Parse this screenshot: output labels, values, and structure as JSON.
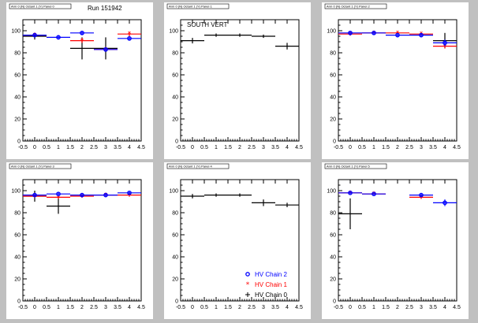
{
  "run_label": "Run 151942",
  "colors": {
    "chain2": "#0000ff",
    "chain1": "#ff0000",
    "chain0": "#000000"
  },
  "legend": {
    "chain2": "HV Chain 2",
    "chain1": "HV Chain 1",
    "chain0": "HV Chain 0"
  },
  "chart_data": [
    {
      "type": "scatter",
      "title": "Arm 0 (N) Octant 1 (Y) Panel 0",
      "annotation": "",
      "xlim": [
        -0.5,
        4.5
      ],
      "ylim": [
        0,
        110
      ],
      "xticks": [
        "-0.5",
        "0",
        "0.5",
        "1",
        "1.5",
        "2",
        "2.5",
        "3",
        "3.5",
        "4",
        "4.5"
      ],
      "yticks": [
        "0",
        "20",
        "40",
        "60",
        "80",
        "100"
      ],
      "series": [
        {
          "key": "chain0",
          "points": [
            {
              "x": 0,
              "y": 95,
              "xe": 0.5,
              "ye": 3
            },
            {
              "x": 2,
              "y": 84,
              "xe": 0.5,
              "ye": 10
            },
            {
              "x": 3,
              "y": 84,
              "xe": 0.5,
              "ye": 10
            }
          ]
        },
        {
          "key": "chain1",
          "points": [
            {
              "x": 0,
              "y": 96,
              "xe": 0.5,
              "ye": 2
            },
            {
              "x": 2,
              "y": 91,
              "xe": 0.5,
              "ye": 2
            },
            {
              "x": 3,
              "y": 83,
              "xe": 0.5,
              "ye": 2
            },
            {
              "x": 4,
              "y": 97,
              "xe": 0.5,
              "ye": 2
            }
          ]
        },
        {
          "key": "chain2",
          "points": [
            {
              "x": 0,
              "y": 96,
              "xe": 0.5,
              "ye": 2
            },
            {
              "x": 1,
              "y": 94,
              "xe": 0.5,
              "ye": 2
            },
            {
              "x": 2,
              "y": 98,
              "xe": 0.5,
              "ye": 2
            },
            {
              "x": 3,
              "y": 83,
              "xe": 0.5,
              "ye": 2
            },
            {
              "x": 4,
              "y": 93,
              "xe": 0.5,
              "ye": 2
            }
          ]
        }
      ]
    },
    {
      "type": "scatter",
      "title": "Arm 0 (N) Octant 1 (Y) Panel 1",
      "annotation": "SOUTH VERT",
      "xlim": [
        -0.5,
        4.5
      ],
      "ylim": [
        0,
        110
      ],
      "xticks": [
        "-0.5",
        "0",
        "0.5",
        "1",
        "1.5",
        "2",
        "2.5",
        "3",
        "3.5",
        "4",
        "4.5"
      ],
      "yticks": [
        "0",
        "20",
        "40",
        "60",
        "80",
        "100"
      ],
      "series": [
        {
          "key": "chain0",
          "points": [
            {
              "x": 0,
              "y": 91,
              "xe": 0.5,
              "ye": 2.5
            },
            {
              "x": 1,
              "y": 96,
              "xe": 0.5,
              "ye": 1.5
            },
            {
              "x": 2,
              "y": 96,
              "xe": 0.5,
              "ye": 1.5
            },
            {
              "x": 3,
              "y": 95,
              "xe": 0.5,
              "ye": 1.5
            },
            {
              "x": 4,
              "y": 86,
              "xe": 0.5,
              "ye": 3
            }
          ]
        }
      ]
    },
    {
      "type": "scatter",
      "title": "Arm 0 (N) Octant 1 (Y) Panel 2",
      "annotation": "",
      "xlim": [
        -0.5,
        4.5
      ],
      "ylim": [
        0,
        110
      ],
      "xticks": [
        "-0.5",
        "0",
        "0.5",
        "1",
        "1.5",
        "2",
        "2.5",
        "3",
        "3.5",
        "4",
        "4.5"
      ],
      "yticks": [
        "0",
        "20",
        "40",
        "60",
        "80",
        "100"
      ],
      "series": [
        {
          "key": "chain0",
          "points": [
            {
              "x": 4,
              "y": 91,
              "xe": 0.5,
              "ye": 7
            }
          ]
        },
        {
          "key": "chain1",
          "points": [
            {
              "x": 0,
              "y": 97,
              "xe": 0.5,
              "ye": 1.5
            },
            {
              "x": 1,
              "y": 98,
              "xe": 0.5,
              "ye": 1.5
            },
            {
              "x": 2,
              "y": 98,
              "xe": 0.5,
              "ye": 1.5
            },
            {
              "x": 3,
              "y": 97,
              "xe": 0.5,
              "ye": 1.5
            },
            {
              "x": 4,
              "y": 86,
              "xe": 0.5,
              "ye": 2
            }
          ]
        },
        {
          "key": "chain2",
          "points": [
            {
              "x": 0,
              "y": 98,
              "xe": 0.5,
              "ye": 1.5
            },
            {
              "x": 1,
              "y": 98,
              "xe": 0.5,
              "ye": 1.5
            },
            {
              "x": 2,
              "y": 96,
              "xe": 0.5,
              "ye": 1.5
            },
            {
              "x": 3,
              "y": 96,
              "xe": 0.5,
              "ye": 1.5
            },
            {
              "x": 4,
              "y": 89,
              "xe": 0.5,
              "ye": 3
            }
          ]
        }
      ]
    },
    {
      "type": "scatter",
      "title": "Arm 0 (N) Octant 1 (Y) Panel 3",
      "annotation": "",
      "xlim": [
        -0.5,
        4.5
      ],
      "ylim": [
        0,
        110
      ],
      "xticks": [
        "-0.5",
        "0",
        "0.5",
        "1",
        "1.5",
        "2",
        "2.5",
        "3",
        "3.5",
        "4",
        "4.5"
      ],
      "yticks": [
        "0",
        "20",
        "40",
        "60",
        "80",
        "100"
      ],
      "series": [
        {
          "key": "chain0",
          "points": [
            {
              "x": 0,
              "y": 95,
              "xe": 0.5,
              "ye": 5
            },
            {
              "x": 1,
              "y": 86,
              "xe": 0.5,
              "ye": 7
            }
          ]
        },
        {
          "key": "chain1",
          "points": [
            {
              "x": 0,
              "y": 95,
              "xe": 0.5,
              "ye": 1.5
            },
            {
              "x": 1,
              "y": 94,
              "xe": 0.5,
              "ye": 1.5
            },
            {
              "x": 2,
              "y": 95,
              "xe": 0.5,
              "ye": 1.5
            },
            {
              "x": 3,
              "y": 96,
              "xe": 0.5,
              "ye": 1.5
            },
            {
              "x": 4,
              "y": 96,
              "xe": 0.5,
              "ye": 1.5
            }
          ]
        },
        {
          "key": "chain2",
          "points": [
            {
              "x": 0,
              "y": 96,
              "xe": 0.5,
              "ye": 1.5
            },
            {
              "x": 1,
              "y": 97,
              "xe": 0.5,
              "ye": 1.5
            },
            {
              "x": 2,
              "y": 96,
              "xe": 0.5,
              "ye": 1.5
            },
            {
              "x": 3,
              "y": 96,
              "xe": 0.5,
              "ye": 1.5
            },
            {
              "x": 4,
              "y": 98,
              "xe": 0.5,
              "ye": 1.5
            }
          ]
        }
      ]
    },
    {
      "type": "scatter",
      "title": "Arm 0 (N) Octant 1 (Y) Panel 4",
      "annotation": "",
      "xlim": [
        -0.5,
        4.5
      ],
      "ylim": [
        0,
        110
      ],
      "xticks": [
        "-0.5",
        "0",
        "0.5",
        "1",
        "1.5",
        "2",
        "2.5",
        "3",
        "3.5",
        "4",
        "4.5"
      ],
      "yticks": [
        "0",
        "20",
        "40",
        "60",
        "80",
        "100"
      ],
      "legend": true,
      "series": [
        {
          "key": "chain0",
          "points": [
            {
              "x": 0,
              "y": 95,
              "xe": 0.5,
              "ye": 2
            },
            {
              "x": 1,
              "y": 96,
              "xe": 0.5,
              "ye": 1.5
            },
            {
              "x": 2,
              "y": 96,
              "xe": 0.5,
              "ye": 1.5
            },
            {
              "x": 3,
              "y": 89,
              "xe": 0.5,
              "ye": 3
            },
            {
              "x": 4,
              "y": 87,
              "xe": 0.5,
              "ye": 2
            }
          ]
        }
      ]
    },
    {
      "type": "scatter",
      "title": "Arm 0 (N) Octant 1 (Y) Panel 5",
      "annotation": "",
      "xlim": [
        -0.5,
        4.5
      ],
      "ylim": [
        0,
        110
      ],
      "xticks": [
        "-0.5",
        "0",
        "0.5",
        "1",
        "1.5",
        "2",
        "2.5",
        "3",
        "3.5",
        "4",
        "4.5"
      ],
      "yticks": [
        "0",
        "20",
        "40",
        "60",
        "80",
        "100"
      ],
      "series": [
        {
          "key": "chain0",
          "points": [
            {
              "x": 0,
              "y": 79,
              "xe": 0.5,
              "ye": 14
            }
          ]
        },
        {
          "key": "chain1",
          "points": [
            {
              "x": 0,
              "y": 98,
              "xe": 0.5,
              "ye": 1
            },
            {
              "x": 1,
              "y": 97,
              "xe": 0.5,
              "ye": 1
            },
            {
              "x": 3,
              "y": 94,
              "xe": 0.5,
              "ye": 1.5
            }
          ]
        },
        {
          "key": "chain2",
          "points": [
            {
              "x": 0,
              "y": 98,
              "xe": 0.5,
              "ye": 1
            },
            {
              "x": 1,
              "y": 97,
              "xe": 0.5,
              "ye": 1
            },
            {
              "x": 3,
              "y": 96,
              "xe": 0.5,
              "ye": 1.5
            },
            {
              "x": 4,
              "y": 89,
              "xe": 0.5,
              "ye": 3
            }
          ]
        }
      ]
    }
  ]
}
